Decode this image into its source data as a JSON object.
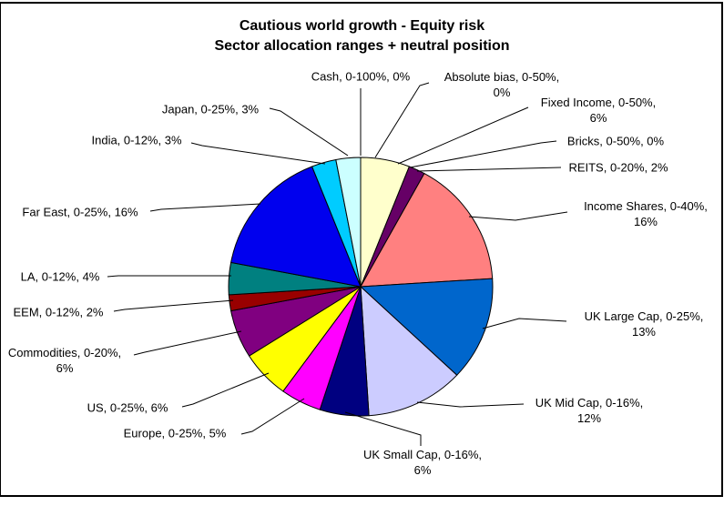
{
  "chart": {
    "title_line1": "Cautious world growth - Equity risk",
    "title_line2": "Sector allocation ranges + neutral position"
  },
  "chart_data": {
    "type": "pie",
    "title": "Cautious world growth - Equity risk",
    "subtitle": "Sector allocation ranges + neutral position",
    "direction": "clockwise",
    "start_angle_deg": 0,
    "legend_position": "none",
    "label_format": "{name}, {range}, {value}%",
    "total": 100,
    "slices": [
      {
        "name": "Cash",
        "range": "0-100%",
        "value": 0,
        "color": null
      },
      {
        "name": "Absolute bias",
        "range": "0-50%",
        "value": 0,
        "color": null
      },
      {
        "name": "Fixed Income",
        "range": "0-50%",
        "value": 6,
        "color": "#FFFFCC"
      },
      {
        "name": "Bricks",
        "range": "0-50%",
        "value": 0,
        "color": null
      },
      {
        "name": "REITS",
        "range": "0-20%",
        "value": 2,
        "color": "#660066"
      },
      {
        "name": "Income Shares",
        "range": "0-40%",
        "value": 16,
        "color": "#FF8080"
      },
      {
        "name": "UK Large Cap",
        "range": "0-25%",
        "value": 13,
        "color": "#0066CC"
      },
      {
        "name": "UK Mid Cap",
        "range": "0-16%",
        "value": 12,
        "color": "#CCCCFF"
      },
      {
        "name": "UK Small Cap",
        "range": "0-16%",
        "value": 6,
        "color": "#000080"
      },
      {
        "name": "Europe",
        "range": "0-25%",
        "value": 5,
        "color": "#FF00FF"
      },
      {
        "name": "US",
        "range": "0-25%",
        "value": 6,
        "color": "#FFFF00"
      },
      {
        "name": "Commodities",
        "range": "0-20%",
        "value": 6,
        "color": "#800080"
      },
      {
        "name": "EEM",
        "range": "0-12%",
        "value": 2,
        "color": "#990000"
      },
      {
        "name": "LA",
        "range": "0-12%",
        "value": 4,
        "color": "#008080"
      },
      {
        "name": "Far East",
        "range": "0-25%",
        "value": 16,
        "color": "#0000EE"
      },
      {
        "name": "India",
        "range": "0-12%",
        "value": 3,
        "color": "#00CCFF"
      },
      {
        "name": "Japan",
        "range": "0-25%",
        "value": 3,
        "color": "#CCFFFF"
      }
    ]
  }
}
